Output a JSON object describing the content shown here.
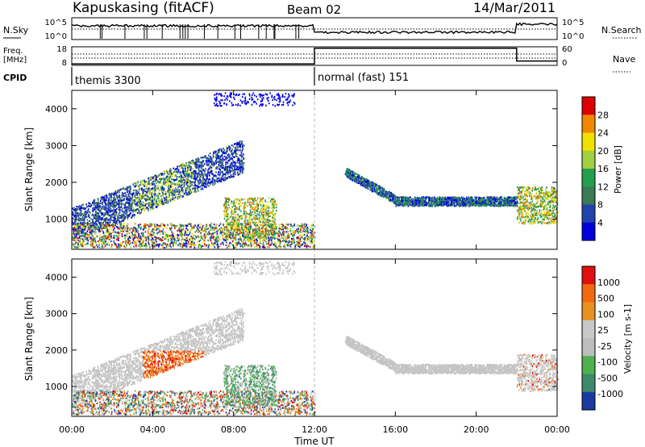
{
  "header": {
    "station": "Kapuskasing (fitACF)",
    "beam": "Beam 02",
    "date": "14/Mar/2011"
  },
  "top_panel": {
    "left_labels": {
      "nsky": "N.Sky",
      "freq_line1": "Freq.",
      "freq_line2": "[MHz]",
      "cpid": "CPID"
    },
    "right_labels": {
      "nsearch": "N.Search",
      "nave": "Nave"
    },
    "nsky_ticks": [
      "10^5",
      "10^0"
    ],
    "nsearch_ticks": [
      "10^5",
      "10^0"
    ],
    "freq_ticks": [
      "18",
      "8"
    ],
    "nave_ticks": [
      "60",
      "0"
    ],
    "cpid_segments": [
      {
        "label": "themis 3300",
        "start_hour": 0,
        "end_hour": 12
      },
      {
        "label": "normal (fast) 151",
        "start_hour": 12,
        "end_hour": 24
      }
    ],
    "nave_profile": [
      {
        "start_hour": 0,
        "end_hour": 12,
        "value": 2
      },
      {
        "start_hour": 12,
        "end_hour": 22,
        "value": 55
      },
      {
        "start_hour": 22,
        "end_hour": 24,
        "value": 12
      }
    ]
  },
  "chart_data": [
    {
      "type": "heatmap",
      "name": "power",
      "ylabel": "Slant Range [km]",
      "ylim": [
        180,
        4500
      ],
      "yticks": [
        "1000",
        "2000",
        "3000",
        "4000"
      ],
      "colorbar": {
        "label": "Power [dB]",
        "ticks": [
          "4",
          "8",
          "12",
          "16",
          "20",
          "24",
          "28"
        ],
        "range": [
          0,
          30
        ],
        "colors": [
          "#0000dd",
          "#2244aa",
          "#3a7a55",
          "#22a050",
          "#a0d040",
          "#f0e000",
          "#f08800",
          "#dd0000"
        ]
      }
    },
    {
      "type": "heatmap",
      "name": "velocity",
      "ylabel": "Slant Range [km]",
      "ylim": [
        180,
        4500
      ],
      "yticks": [
        "1000",
        "2000",
        "3000",
        "4000"
      ],
      "colorbar": {
        "label": "Velocity [m s-1]",
        "ticks": [
          "1000",
          "500",
          "100",
          "25",
          "-25",
          "-100",
          "-500",
          "-1000"
        ],
        "colors": [
          "#1a3aa0",
          "#3d8a6a",
          "#4fb04f",
          "#bdbdbd",
          "#c8c8c8",
          "#e89020",
          "#f26a10",
          "#e01010"
        ]
      }
    }
  ],
  "x_axis": {
    "label": "Time UT",
    "range_hours": [
      0,
      24
    ],
    "ticks": [
      "00:00",
      "04:00",
      "08:00",
      "12:00",
      "16:00",
      "20:00",
      "00:00"
    ]
  }
}
